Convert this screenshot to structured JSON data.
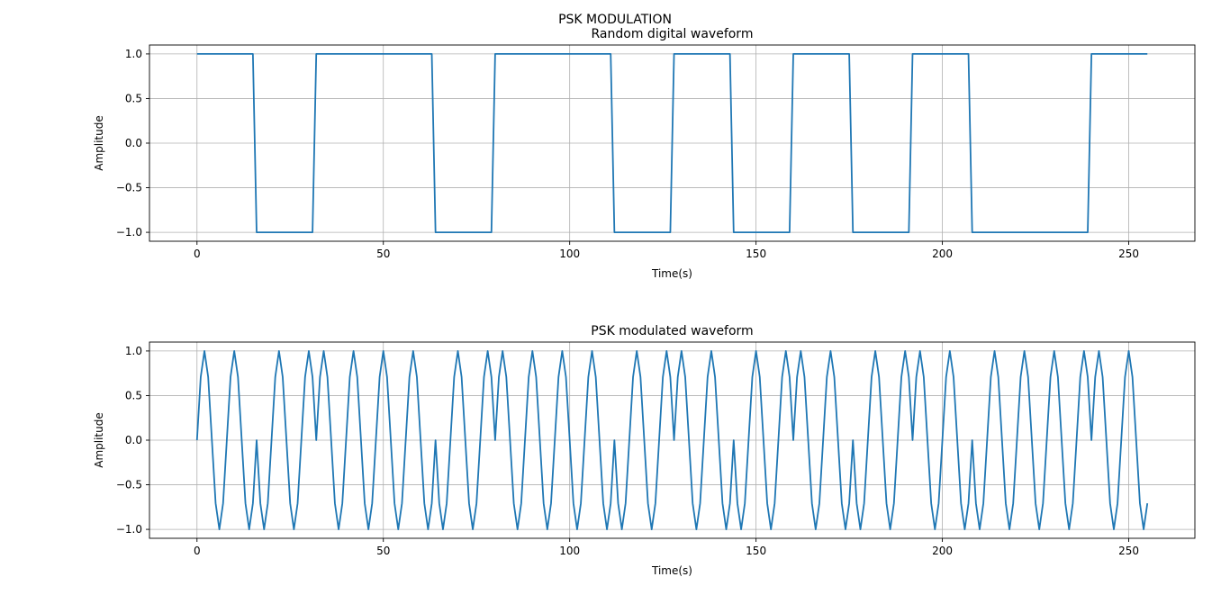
{
  "figure": {
    "suptitle": "PSK MODULATION"
  },
  "colors": {
    "line": "#1f77b4",
    "grid": "#b0b0b0",
    "axes": "#000000",
    "background": "#ffffff"
  },
  "chart_data": [
    {
      "type": "line",
      "title": "Random digital waveform",
      "xlabel": "Time(s)",
      "ylabel": "Amplitude",
      "xlim": [
        -12.75,
        267.75
      ],
      "ylim": [
        -1.1,
        1.1
      ],
      "xticks": [
        0,
        50,
        100,
        150,
        200,
        250
      ],
      "yticks": [
        -1.0,
        -0.5,
        0.0,
        0.5,
        1.0
      ],
      "ytick_labels": [
        "−1.0",
        "−0.5",
        "0.0",
        "0.5",
        "1.0"
      ],
      "grid": true,
      "samples_per_bit": 16,
      "x_range": [
        0,
        255
      ],
      "bits": [
        1,
        -1,
        1,
        1,
        -1,
        1,
        1,
        -1,
        1,
        -1,
        1,
        -1,
        1,
        -1,
        -1,
        1
      ],
      "series": [
        {
          "generator": "bits"
        }
      ]
    },
    {
      "type": "line",
      "title": "PSK modulated waveform",
      "xlabel": "Time(s)",
      "ylabel": "Amplitude",
      "xlim": [
        -12.75,
        267.75
      ],
      "ylim": [
        -1.1,
        1.1
      ],
      "xticks": [
        0,
        50,
        100,
        150,
        200,
        250
      ],
      "yticks": [
        -1.0,
        -0.5,
        0.0,
        0.5,
        1.0
      ],
      "ytick_labels": [
        "−1.0",
        "−0.5",
        "0.0",
        "0.5",
        "1.0"
      ],
      "grid": true,
      "carrier_period": 8,
      "x_range": [
        0,
        255
      ],
      "series": [
        {
          "generator": "psk"
        }
      ]
    }
  ]
}
